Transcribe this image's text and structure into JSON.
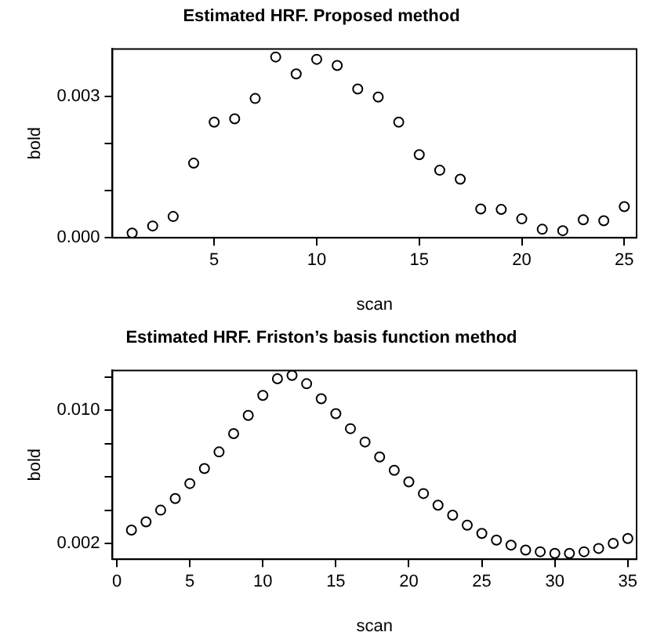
{
  "chart_data": [
    {
      "type": "scatter",
      "title": "Estimated HRF. Proposed method",
      "xlabel": "scan",
      "ylabel": "bold",
      "marker": "circle",
      "grid": false,
      "legend": false,
      "x": [
        1,
        2,
        3,
        4,
        5,
        6,
        7,
        8,
        9,
        10,
        11,
        12,
        13,
        14,
        15,
        16,
        17,
        18,
        19,
        20,
        21,
        22,
        23,
        24,
        25
      ],
      "series": [
        {
          "color": "#000000",
          "values": [
            0.0001,
            0.00025,
            0.00045,
            0.00158,
            0.00245,
            0.00252,
            0.00295,
            0.00383,
            0.00347,
            0.00378,
            0.00365,
            0.00315,
            0.00298,
            0.00245,
            0.00176,
            0.00143,
            0.00124,
            0.00061,
            0.0006,
            0.0004,
            0.00018,
            0.00015,
            0.00038,
            0.00036,
            0.00066
          ]
        }
      ],
      "xlim": [
        0.04,
        25.6
      ],
      "xticks": [
        5,
        10,
        15,
        20,
        25
      ],
      "ylim": [
        0,
        0.004
      ],
      "yticks": [
        {
          "value": 0,
          "label": "0.000"
        },
        {
          "value": 0.001,
          "label": null
        },
        {
          "value": 0.002,
          "label": null
        },
        0.003
      ]
    },
    {
      "type": "scatter",
      "title": "Estimated HRF. Friston’s basis function method",
      "xlabel": "scan",
      "ylabel": "bold",
      "marker": "circle",
      "grid": false,
      "legend": false,
      "x": [
        1,
        2,
        3,
        4,
        5,
        6,
        7,
        8,
        9,
        10,
        11,
        12,
        13,
        14,
        15,
        16,
        17,
        18,
        19,
        20,
        21,
        22,
        23,
        24,
        25,
        26,
        27,
        28,
        29,
        30,
        31,
        32,
        33,
        34,
        35
      ],
      "series": [
        {
          "color": "#000000",
          "values": [
            0.0028,
            0.0033,
            0.004,
            0.0047,
            0.0056,
            0.0065,
            0.0075,
            0.0086,
            0.0097,
            0.0109,
            0.0119,
            0.0121,
            0.0116,
            0.0107,
            0.0098,
            0.0089,
            0.0081,
            0.0072,
            0.0064,
            0.0057,
            0.005,
            0.0043,
            0.0037,
            0.0031,
            0.0026,
            0.0022,
            0.0019,
            0.0016,
            0.0015,
            0.0014,
            0.0014,
            0.0015,
            0.0017,
            0.002,
            0.0023
          ]
        }
      ],
      "xlim": [
        -0.3,
        35.6
      ],
      "xticks": [
        0,
        5,
        10,
        15,
        20,
        25,
        30,
        35
      ],
      "ylim": [
        0.00105,
        0.0124
      ],
      "yticks": [
        0.002,
        {
          "value": 0.004,
          "label": null
        },
        {
          "value": 0.006,
          "label": null
        },
        {
          "value": 0.008,
          "label": null
        },
        {
          "value": 0.01,
          "label": "0.010"
        },
        {
          "value": 0.012,
          "label": null
        }
      ]
    }
  ]
}
